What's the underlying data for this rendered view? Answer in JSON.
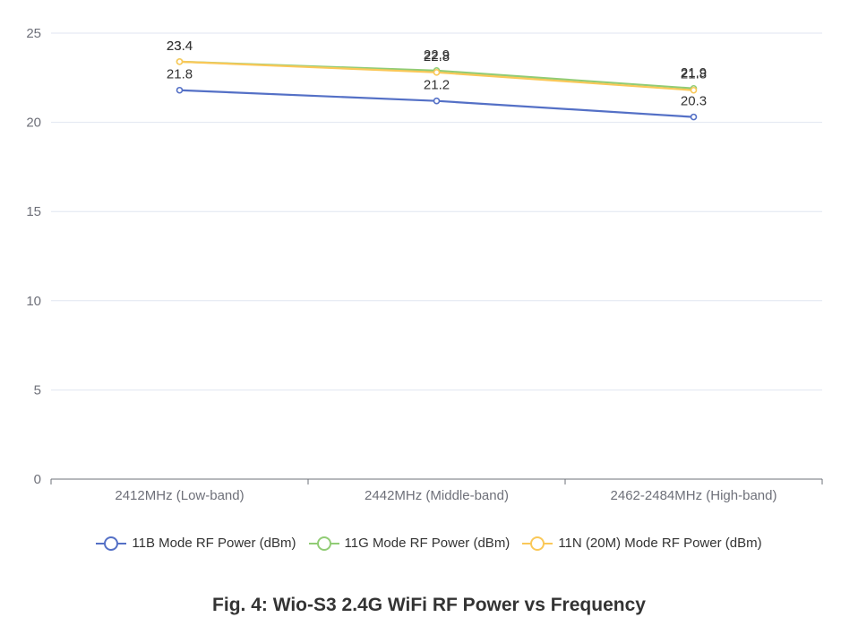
{
  "chart_data": {
    "type": "line",
    "title": "Fig. 4: Wio-S3 2.4G WiFi RF Power vs Frequency",
    "xlabel": "",
    "ylabel": "",
    "categories": [
      "2412MHz (Low-band)",
      "2442MHz (Middle-band)",
      "2462-2484MHz (High-band)"
    ],
    "ylim": [
      0,
      25
    ],
    "yticks": [
      0,
      5,
      10,
      15,
      20,
      25
    ],
    "grid": true,
    "legend_position": "bottom",
    "series": [
      {
        "name": "11B Mode RF Power (dBm)",
        "values": [
          21.8,
          21.2,
          20.3
        ],
        "color": "#5470c6"
      },
      {
        "name": "11G Mode RF Power (dBm)",
        "values": [
          23.4,
          22.9,
          21.9
        ],
        "color": "#91cc75"
      },
      {
        "name": "11N (20M) Mode RF Power (dBm)",
        "values": [
          23.4,
          22.8,
          21.8
        ],
        "color": "#fac858"
      }
    ]
  }
}
